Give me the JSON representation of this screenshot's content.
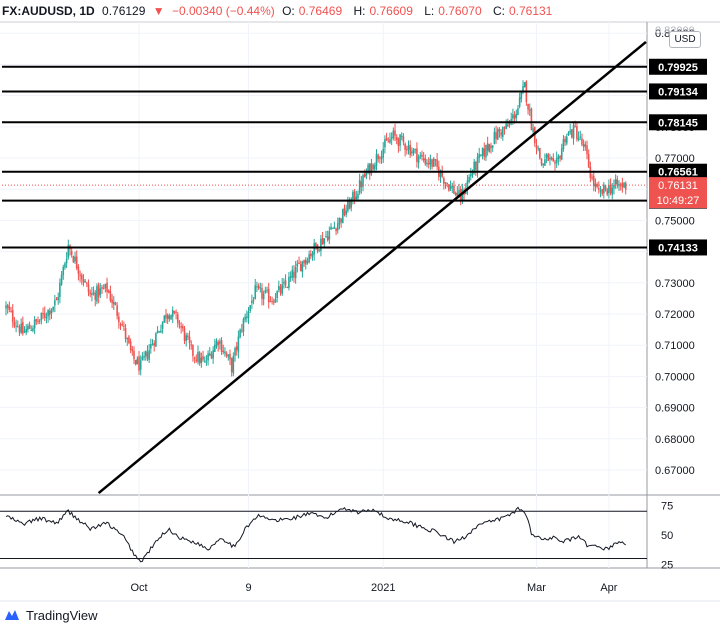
{
  "header": {
    "symbol": "FX:AUDUSD, 1D",
    "price": "0.76129",
    "change": "−0.00340 (−0.44%)",
    "o_label": "O:",
    "o_val": "0.76469",
    "h_label": "H:",
    "h_val": "0.76609",
    "l_label": "L:",
    "l_val": "0.76070",
    "c_label": "C:",
    "c_val": "0.76131"
  },
  "currency_button": "USD",
  "logo_text": "TradingView",
  "colors": {
    "up": "#26a69a",
    "down": "#ef5350",
    "line": "#000000",
    "grid": "#f0f3fa",
    "price_tag": "#ef5350"
  },
  "chart_data": {
    "type": "candlestick",
    "ylim": [
      0.6623,
      0.8136
    ],
    "y_ticks": [
      "0.81000",
      "0.80000",
      "0.79000",
      "0.78000",
      "0.77000",
      "0.76000",
      "0.75000",
      "0.74000",
      "0.73000",
      "0.72000",
      "0.71000",
      "0.70000",
      "0.69000",
      "0.68000",
      "0.67000"
    ],
    "y_tick_values": [
      0.81,
      0.8,
      0.79,
      0.78,
      0.77,
      0.76,
      0.75,
      0.74,
      0.73,
      0.72,
      0.71,
      0.7,
      0.69,
      0.68,
      0.67
    ],
    "top_clipped_tick": "0.82000",
    "x_ticks": [
      {
        "label": "Oct",
        "bar": 79
      },
      {
        "label": "9",
        "bar": 144
      },
      {
        "label": "2021",
        "bar": 224
      },
      {
        "label": "Mar",
        "bar": 315
      },
      {
        "label": "Apr",
        "bar": 358
      }
    ],
    "bar_count": 368,
    "horizontal_levels": [
      {
        "label": "0.79925",
        "value": 0.79925
      },
      {
        "label": "0.79134",
        "value": 0.79134
      },
      {
        "label": "0.78145",
        "value": 0.78145
      },
      {
        "label": "0.76561",
        "value": 0.76561
      },
      {
        "label": "0.75633",
        "value": 0.75633
      },
      {
        "label": "0.74133",
        "value": 0.74133
      }
    ],
    "current_price": {
      "label": "0.76131",
      "countdown": "10:49:27",
      "value": 0.76131
    },
    "trendline": {
      "from": {
        "bar": 55,
        "value": 0.6626
      },
      "to": {
        "bar": 380,
        "value": 0.8072
      }
    },
    "price_anchors": [
      [
        0,
        0.722
      ],
      [
        10,
        0.714
      ],
      [
        20,
        0.718
      ],
      [
        30,
        0.724
      ],
      [
        37,
        0.742
      ],
      [
        42,
        0.736
      ],
      [
        50,
        0.726
      ],
      [
        60,
        0.728
      ],
      [
        68,
        0.718
      ],
      [
        75,
        0.706
      ],
      [
        80,
        0.703
      ],
      [
        88,
        0.712
      ],
      [
        96,
        0.721
      ],
      [
        102,
        0.718
      ],
      [
        110,
        0.708
      ],
      [
        118,
        0.704
      ],
      [
        126,
        0.712
      ],
      [
        134,
        0.703
      ],
      [
        140,
        0.716
      ],
      [
        148,
        0.727
      ],
      [
        158,
        0.725
      ],
      [
        166,
        0.729
      ],
      [
        175,
        0.736
      ],
      [
        183,
        0.741
      ],
      [
        190,
        0.745
      ],
      [
        198,
        0.75
      ],
      [
        206,
        0.757
      ],
      [
        214,
        0.765
      ],
      [
        222,
        0.772
      ],
      [
        230,
        0.777
      ],
      [
        238,
        0.774
      ],
      [
        246,
        0.77
      ],
      [
        254,
        0.768
      ],
      [
        262,
        0.762
      ],
      [
        270,
        0.757
      ],
      [
        276,
        0.765
      ],
      [
        284,
        0.772
      ],
      [
        292,
        0.778
      ],
      [
        298,
        0.78
      ],
      [
        304,
        0.786
      ],
      [
        308,
        0.793
      ],
      [
        312,
        0.781
      ],
      [
        318,
        0.768
      ],
      [
        322,
        0.77
      ],
      [
        326,
        0.766
      ],
      [
        332,
        0.777
      ],
      [
        338,
        0.779
      ],
      [
        344,
        0.772
      ],
      [
        348,
        0.763
      ],
      [
        352,
        0.758
      ],
      [
        356,
        0.76
      ],
      [
        362,
        0.761
      ],
      [
        368,
        0.7613
      ]
    ]
  },
  "rsi_data": {
    "type": "line",
    "ylim": [
      22,
      82
    ],
    "y_ticks": [
      "75",
      "50",
      "25"
    ],
    "y_tick_values": [
      75,
      50,
      25
    ],
    "bands": [
      70,
      30
    ],
    "anchors": [
      [
        0,
        66
      ],
      [
        10,
        59
      ],
      [
        20,
        64
      ],
      [
        30,
        60
      ],
      [
        37,
        70
      ],
      [
        42,
        64
      ],
      [
        50,
        55
      ],
      [
        60,
        60
      ],
      [
        70,
        48
      ],
      [
        76,
        34
      ],
      [
        80,
        27
      ],
      [
        88,
        42
      ],
      [
        96,
        55
      ],
      [
        104,
        47
      ],
      [
        112,
        44
      ],
      [
        120,
        38
      ],
      [
        128,
        48
      ],
      [
        136,
        39
      ],
      [
        142,
        56
      ],
      [
        150,
        66
      ],
      [
        160,
        62
      ],
      [
        170,
        64
      ],
      [
        180,
        68
      ],
      [
        190,
        64
      ],
      [
        200,
        73
      ],
      [
        210,
        69
      ],
      [
        218,
        72
      ],
      [
        226,
        64
      ],
      [
        236,
        62
      ],
      [
        246,
        57
      ],
      [
        256,
        52
      ],
      [
        266,
        44
      ],
      [
        272,
        48
      ],
      [
        280,
        58
      ],
      [
        290,
        62
      ],
      [
        298,
        66
      ],
      [
        304,
        72
      ],
      [
        308,
        70
      ],
      [
        312,
        52
      ],
      [
        318,
        46
      ],
      [
        324,
        48
      ],
      [
        330,
        44
      ],
      [
        340,
        48
      ],
      [
        346,
        40
      ],
      [
        352,
        40
      ],
      [
        358,
        38
      ],
      [
        362,
        44
      ],
      [
        368,
        42
      ]
    ]
  }
}
